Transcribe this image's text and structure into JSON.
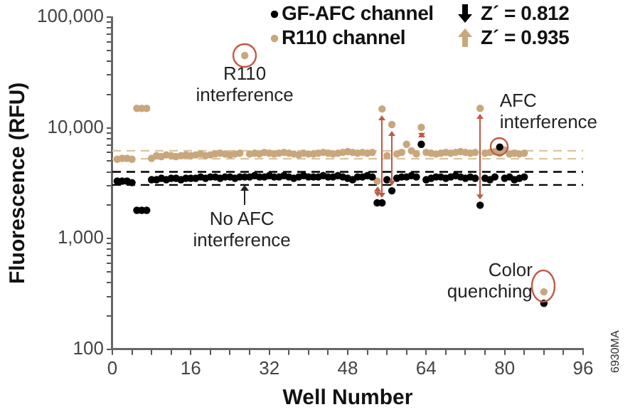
{
  "chart_data": {
    "type": "scatter",
    "xlabel": "Well Number",
    "ylabel": "Fluorescence (RFU)",
    "x": [
      1,
      2,
      3,
      4,
      5,
      6,
      7,
      8,
      9,
      10,
      11,
      12,
      13,
      14,
      15,
      16,
      17,
      18,
      19,
      20,
      21,
      22,
      23,
      24,
      25,
      26,
      27,
      28,
      29,
      30,
      31,
      32,
      33,
      34,
      35,
      36,
      37,
      38,
      39,
      40,
      41,
      42,
      43,
      44,
      45,
      46,
      47,
      48,
      49,
      50,
      51,
      52,
      53,
      54,
      55,
      56,
      57,
      58,
      59,
      60,
      61,
      62,
      63,
      64,
      65,
      66,
      67,
      68,
      69,
      70,
      71,
      72,
      73,
      74,
      75,
      76,
      77,
      78,
      79,
      80,
      81,
      82,
      83,
      84,
      88
    ],
    "series": [
      {
        "name": "R110 channel",
        "color": "#c9a77c",
        "values": [
          5200,
          5300,
          5300,
          5200,
          15000,
          15000,
          15000,
          5300,
          5600,
          5500,
          5700,
          5600,
          5500,
          5600,
          5700,
          5600,
          5700,
          5800,
          5600,
          5700,
          5800,
          5900,
          5800,
          5700,
          5800,
          5900,
          45000,
          5800,
          5900,
          5800,
          6000,
          5900,
          5800,
          5900,
          6000,
          5900,
          5800,
          5700,
          5900,
          5800,
          5800,
          5900,
          6000,
          5900,
          5800,
          5900,
          6000,
          6100,
          6000,
          5900,
          6000,
          5900,
          6000,
          3300,
          14800,
          5600,
          10700,
          5800,
          6000,
          7100,
          6200,
          5800,
          10100,
          6000,
          5900,
          5800,
          5900,
          6000,
          5900,
          6000,
          6100,
          6000,
          5900,
          6000,
          15000,
          5900,
          6000,
          6100,
          5900,
          6300,
          5800,
          5900,
          5800,
          5900,
          330
        ]
      },
      {
        "name": "GF-AFC channel",
        "color": "#000000",
        "values": [
          3300,
          3300,
          3300,
          3200,
          1800,
          1800,
          1800,
          3400,
          3400,
          3500,
          3400,
          3500,
          3500,
          3400,
          3500,
          3500,
          3500,
          3600,
          3500,
          3600,
          3600,
          3500,
          3600,
          3600,
          3500,
          3600,
          3600,
          3600,
          3700,
          3600,
          3600,
          3700,
          3600,
          3600,
          3700,
          3600,
          3500,
          3600,
          3700,
          3600,
          3600,
          3600,
          3700,
          3600,
          3600,
          3700,
          3600,
          3500,
          3400,
          3600,
          3600,
          3700,
          3600,
          2100,
          2100,
          3400,
          2700,
          3500,
          3600,
          3600,
          3700,
          3600,
          7100,
          3400,
          3500,
          3600,
          3600,
          3500,
          3600,
          3700,
          3600,
          3500,
          3600,
          3500,
          2000,
          3500,
          3400,
          3600,
          6700,
          3500,
          3600,
          3400,
          3500,
          3600,
          260
        ]
      }
    ],
    "log": true,
    "marker": "circle",
    "grid": false,
    "legend": "top right",
    "xlim": [
      0,
      96
    ],
    "xticks": [
      0,
      {
        "value": 4,
        "label": null
      },
      {
        "value": 8,
        "label": null
      },
      {
        "value": 12,
        "label": null
      },
      16,
      {
        "value": 20,
        "label": null
      },
      {
        "value": 24,
        "label": null
      },
      {
        "value": 28,
        "label": null
      },
      32,
      {
        "value": 36,
        "label": null
      },
      {
        "value": 40,
        "label": null
      },
      {
        "value": 44,
        "label": null
      },
      48,
      {
        "value": 52,
        "label": null
      },
      {
        "value": 56,
        "label": null
      },
      {
        "value": 60,
        "label": null
      },
      64,
      {
        "value": 68,
        "label": null
      },
      {
        "value": 72,
        "label": null
      },
      {
        "value": 76,
        "label": null
      },
      80,
      {
        "value": 84,
        "label": null
      },
      {
        "value": 88,
        "label": null
      },
      {
        "value": 92,
        "label": null
      },
      96
    ],
    "ylim": [
      100,
      100000
    ],
    "yticks": [
      {
        "value": 100,
        "label": "100"
      },
      {
        "value": 200,
        "label": null
      },
      {
        "value": 300,
        "label": null
      },
      {
        "value": 400,
        "label": null
      },
      {
        "value": 500,
        "label": null
      },
      {
        "value": 600,
        "label": null
      },
      {
        "value": 700,
        "label": null
      },
      {
        "value": 800,
        "label": null
      },
      {
        "value": 900,
        "label": null
      },
      {
        "value": 1000,
        "label": "1,000"
      },
      {
        "value": 2000,
        "label": null
      },
      {
        "value": 3000,
        "label": null
      },
      {
        "value": 4000,
        "label": null
      },
      {
        "value": 5000,
        "label": null
      },
      {
        "value": 6000,
        "label": null
      },
      {
        "value": 7000,
        "label": null
      },
      {
        "value": 8000,
        "label": null
      },
      {
        "value": 9000,
        "label": null
      },
      {
        "value": 10000,
        "label": "10,000"
      },
      {
        "value": 20000,
        "label": null
      },
      {
        "value": 30000,
        "label": null
      },
      {
        "value": 40000,
        "label": null
      },
      {
        "value": 50000,
        "label": null
      },
      {
        "value": 60000,
        "label": null
      },
      {
        "value": 70000,
        "label": null
      },
      {
        "value": 80000,
        "label": null
      },
      {
        "value": 90000,
        "label": null
      },
      {
        "value": 100000,
        "label": "100,000"
      }
    ],
    "ref_lines": [
      {
        "axis": "y",
        "value": 3050,
        "color": "#000000",
        "line_style": "dashed"
      },
      {
        "axis": "y",
        "value": 4000,
        "color": "#000000",
        "line_style": "dashed"
      },
      {
        "axis": "y",
        "value": 5250,
        "color": "#dcc4a0",
        "line_style": "dashed"
      },
      {
        "axis": "y",
        "value": 6200,
        "color": "#dcc4a0",
        "line_style": "dashed"
      }
    ],
    "annotations": [
      {
        "text": "R110 interference",
        "x": 27,
        "y": 45000
      },
      {
        "text": "No AFC interference",
        "x": 27,
        "y": 3600
      },
      {
        "text": "AFC interference",
        "x": 79,
        "y": 6700
      },
      {
        "text": "Color quenching",
        "x": 88,
        "y": 330
      },
      "Z´ = 0.935",
      "Z´ = 0.812",
      "6930MA"
    ]
  }
}
